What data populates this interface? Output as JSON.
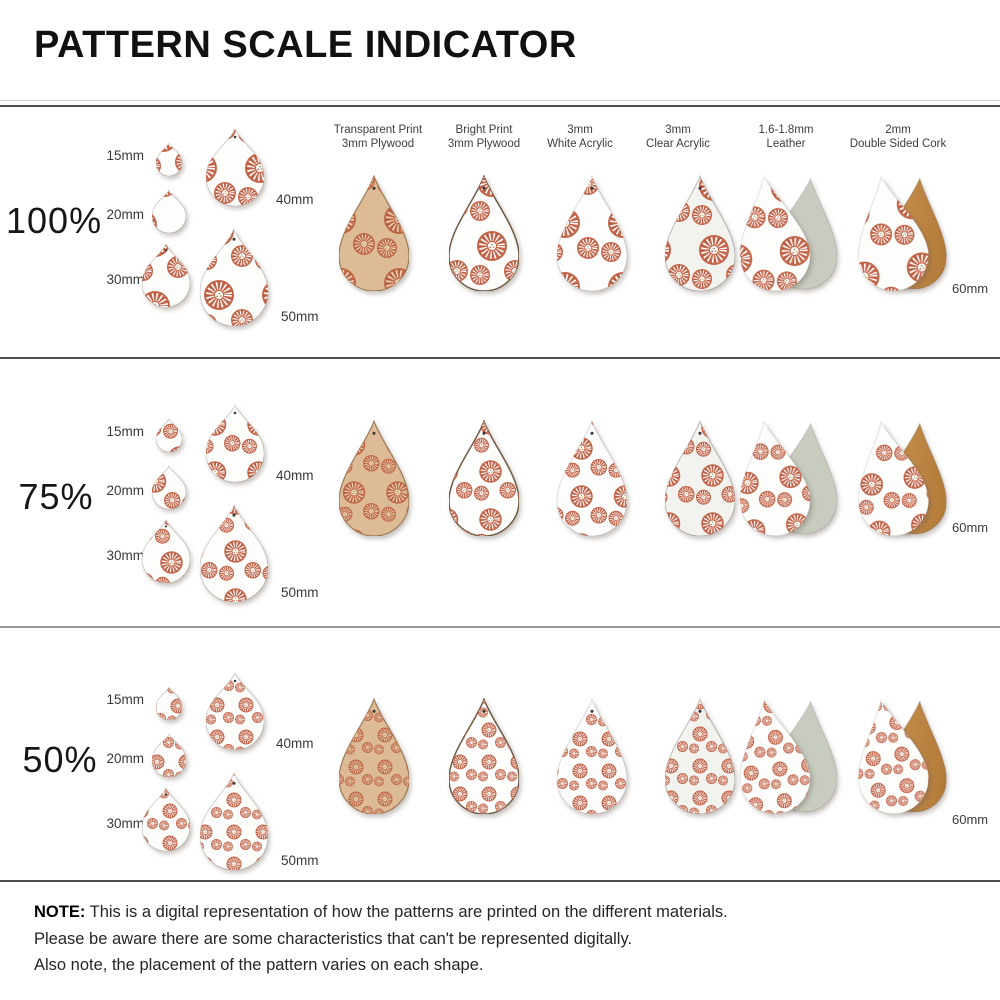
{
  "title": "PATTERN SCALE INDICATOR",
  "materials": [
    {
      "line1": "Transparent Print",
      "line2": "3mm Plywood",
      "type": "plywood-transparent"
    },
    {
      "line1": "Bright Print",
      "line2": "3mm Plywood",
      "type": "plywood-bright"
    },
    {
      "line1": "3mm",
      "line2": "White Acrylic",
      "type": "white-acrylic"
    },
    {
      "line1": "3mm",
      "line2": "Clear Acrylic",
      "type": "clear-acrylic"
    },
    {
      "line1": "1.6-1.8mm",
      "line2": "Leather",
      "type": "leather"
    },
    {
      "line1": "2mm",
      "line2": "Double Sided Cork",
      "type": "cork"
    }
  ],
  "rows": [
    {
      "scale_label": "100%",
      "scale": 1,
      "size_labels": [
        "15mm",
        "20mm",
        "30mm",
        "40mm",
        "50mm"
      ],
      "back_size_label": "60mm"
    },
    {
      "scale_label": "75%",
      "scale": 0.75,
      "size_labels": [
        "15mm",
        "20mm",
        "30mm",
        "40mm",
        "50mm"
      ],
      "back_size_label": "60mm"
    },
    {
      "scale_label": "50%",
      "scale": 0.5,
      "size_labels": [
        "15mm",
        "20mm",
        "30mm",
        "40mm",
        "50mm"
      ],
      "back_size_label": "60mm"
    }
  ],
  "note": {
    "prefix": "NOTE:",
    "lines": [
      "This is a digital representation of how the patterns are printed on the different materials.",
      "Please be aware there are some characteristics that can't be represented digitally.",
      "Also note, the placement of the pattern varies on each shape."
    ]
  },
  "colors": {
    "pattern_coral": "#c4674c",
    "pattern_coral_deep": "#b2543b",
    "flower_center_white": "#ffffff",
    "flower_dot_green": "#7f9a50",
    "flower_dot_gold": "#cc9a40",
    "plywood_tan": "#ddbb97",
    "plywood_flower_center": "#ead8b8",
    "wood_edge": "#6f5a45",
    "white_material": "#fdfdfc",
    "clear_acrylic": "#f5f5f2",
    "leather_back_gray": "#c8ccc0",
    "cork_light": "#c89250",
    "cork_dark": "#b37a38",
    "hole": "#3f3a35",
    "divider_dark": "#4c4c4c",
    "divider_mid": "#999999",
    "divider_light": "#cccccc"
  }
}
